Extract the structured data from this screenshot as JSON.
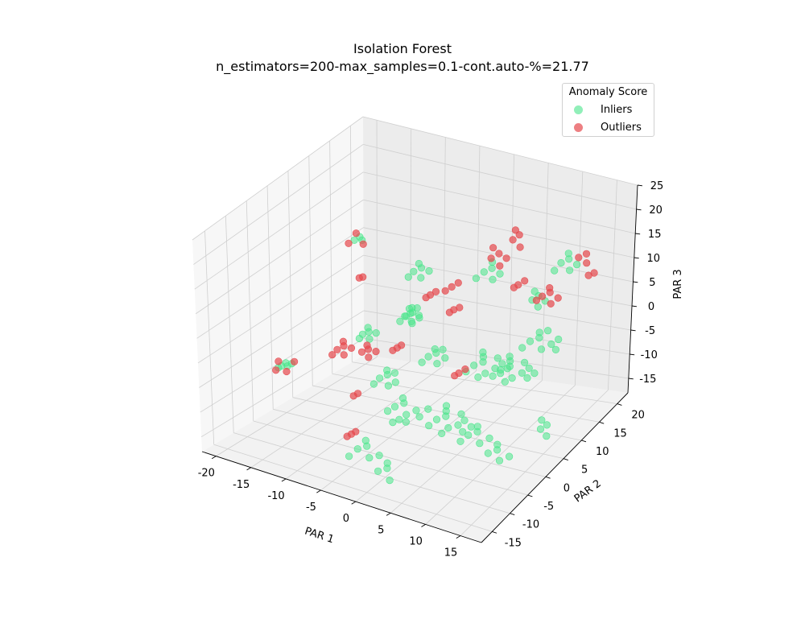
{
  "chart_data": {
    "type": "scatter",
    "projection": "3d",
    "title_line1": "Isolation Forest",
    "title_line2": "n_estimators=200-max_samples=0.1-cont.auto-%=21.77",
    "xlabel": "PAR 1",
    "ylabel": "PAR 2",
    "zlabel": "PAR 3",
    "xticks": [
      -20,
      -15,
      -10,
      -5,
      0,
      5,
      10,
      15
    ],
    "yticks": [
      -15,
      -10,
      -5,
      0,
      5,
      10,
      15,
      20
    ],
    "zticks": [
      -15,
      -10,
      -5,
      0,
      5,
      10,
      15,
      20,
      25
    ],
    "xlim": [
      -22,
      18
    ],
    "ylim": [
      -18,
      23
    ],
    "zlim": [
      -18,
      25
    ],
    "grid": true,
    "legend": {
      "title": "Anomaly Score",
      "placement": "upper right",
      "entries": [
        "Inliers",
        "Outliers"
      ]
    },
    "series": [
      {
        "name": "Inliers",
        "color": "#48e58a",
        "points": [
          [
            -20.0,
            -1.0,
            -8.5
          ],
          [
            -19.6,
            -0.6,
            -8.0
          ],
          [
            -19.2,
            -0.9,
            -8.3
          ],
          [
            -18.8,
            -0.5,
            -7.9
          ],
          [
            -20.3,
            -1.3,
            -8.8
          ],
          [
            -15.0,
            9.0,
            12.0
          ],
          [
            -14.5,
            9.5,
            12.5
          ],
          [
            -14.0,
            9.2,
            12.2
          ],
          [
            -11.0,
            4.0,
            -2.0
          ],
          [
            -10.4,
            4.5,
            -1.6
          ],
          [
            -9.8,
            3.6,
            -2.3
          ],
          [
            -10.8,
            5.0,
            -1.2
          ],
          [
            -9.5,
            4.8,
            -1.7
          ],
          [
            -11.2,
            3.5,
            -2.6
          ],
          [
            -6.0,
            6.0,
            2.0
          ],
          [
            -5.4,
            6.4,
            2.5
          ],
          [
            -4.8,
            5.6,
            1.6
          ],
          [
            -5.9,
            7.0,
            2.9
          ],
          [
            -4.4,
            6.8,
            2.2
          ],
          [
            -6.3,
            5.3,
            1.3
          ],
          [
            -5.0,
            7.4,
            3.1
          ],
          [
            -7.0,
            10.0,
            8.0
          ],
          [
            -6.2,
            10.6,
            8.6
          ],
          [
            -5.6,
            9.4,
            7.6
          ],
          [
            -6.8,
            11.0,
            9.0
          ],
          [
            -5.2,
            10.8,
            8.2
          ],
          [
            -7.3,
            9.2,
            7.3
          ],
          [
            -2.0,
            5.0,
            -4.0
          ],
          [
            -1.2,
            5.6,
            -3.4
          ],
          [
            -0.4,
            4.4,
            -4.5
          ],
          [
            -1.6,
            6.0,
            -3.0
          ],
          [
            0.2,
            5.4,
            -3.8
          ],
          [
            -2.5,
            4.2,
            -4.8
          ],
          [
            -0.8,
            6.6,
            -3.2
          ],
          [
            -8.0,
            3.0,
            -9.0
          ],
          [
            -7.2,
            3.6,
            -8.4
          ],
          [
            -6.4,
            2.4,
            -9.6
          ],
          [
            -7.6,
            4.2,
            -8.0
          ],
          [
            -5.8,
            3.2,
            -9.2
          ],
          [
            -8.4,
            2.2,
            -9.8
          ],
          [
            -6.8,
            4.8,
            -8.6
          ],
          [
            -3.0,
            -2.0,
            -10.0
          ],
          [
            -2.0,
            -1.4,
            -9.3
          ],
          [
            -1.0,
            -2.6,
            -10.5
          ],
          [
            -2.6,
            -0.6,
            -9.0
          ],
          [
            0.0,
            -1.8,
            -9.8
          ],
          [
            -3.6,
            -2.8,
            -10.6
          ],
          [
            -1.6,
            -3.4,
            -11.2
          ],
          [
            0.8,
            -2.4,
            -10.4
          ],
          [
            -2.2,
            -4.0,
            -11.6
          ],
          [
            1.4,
            -1.2,
            -9.4
          ],
          [
            -0.4,
            -3.8,
            -11.0
          ],
          [
            2.0,
            0.0,
            -12.0
          ],
          [
            3.0,
            0.6,
            -11.4
          ],
          [
            4.0,
            -0.6,
            -12.6
          ],
          [
            2.6,
            1.4,
            -11.0
          ],
          [
            5.0,
            0.2,
            -12.2
          ],
          [
            1.4,
            -1.0,
            -12.8
          ],
          [
            3.6,
            -1.6,
            -13.2
          ],
          [
            4.6,
            1.8,
            -11.2
          ],
          [
            6.0,
            -0.4,
            -12.8
          ],
          [
            2.2,
            2.2,
            -10.6
          ],
          [
            5.4,
            1.2,
            -11.8
          ],
          [
            6.6,
            0.8,
            -12.4
          ],
          [
            3.0,
            8.0,
            -6.0
          ],
          [
            4.0,
            8.6,
            -5.4
          ],
          [
            5.0,
            7.4,
            -6.6
          ],
          [
            3.6,
            9.4,
            -5.0
          ],
          [
            6.0,
            8.2,
            -5.8
          ],
          [
            2.4,
            7.0,
            -6.8
          ],
          [
            5.6,
            9.6,
            -4.8
          ],
          [
            7.0,
            7.8,
            -6.2
          ],
          [
            4.4,
            6.6,
            -7.0
          ],
          [
            6.6,
            9.0,
            -5.2
          ],
          [
            7.6,
            8.6,
            -5.6
          ],
          [
            3.2,
            10.0,
            -4.6
          ],
          [
            8.0,
            6.0,
            -4.0
          ],
          [
            9.0,
            6.6,
            -3.4
          ],
          [
            10.0,
            5.4,
            -4.6
          ],
          [
            8.6,
            7.4,
            -3.0
          ],
          [
            11.0,
            6.2,
            -3.8
          ],
          [
            7.4,
            5.0,
            -4.8
          ],
          [
            10.6,
            7.6,
            -2.8
          ],
          [
            12.0,
            5.8,
            -4.2
          ],
          [
            9.4,
            4.6,
            -5.0
          ],
          [
            11.6,
            7.0,
            -3.2
          ],
          [
            12.6,
            6.6,
            -3.6
          ],
          [
            8.2,
            8.0,
            -2.6
          ],
          [
            9.0,
            12.0,
            -2.0
          ],
          [
            10.0,
            12.6,
            -1.4
          ],
          [
            11.0,
            11.4,
            -2.6
          ],
          [
            9.6,
            13.4,
            -1.0
          ],
          [
            12.0,
            12.2,
            -1.8
          ],
          [
            13.0,
            11.6,
            -2.2
          ],
          [
            10.6,
            13.8,
            -0.6
          ],
          [
            8.4,
            11.0,
            -2.8
          ],
          [
            12.6,
            13.0,
            -1.2
          ],
          [
            5.0,
            3.0,
            -16.0
          ],
          [
            6.0,
            3.6,
            -15.4
          ],
          [
            7.0,
            2.4,
            -16.6
          ],
          [
            5.6,
            4.4,
            -15.0
          ],
          [
            8.0,
            3.2,
            -15.8
          ],
          [
            4.4,
            2.0,
            -16.8
          ],
          [
            9.0,
            1.0,
            -17.0
          ],
          [
            10.0,
            1.6,
            -16.4
          ],
          [
            11.0,
            0.4,
            -17.4
          ],
          [
            9.6,
            2.4,
            -16.0
          ],
          [
            12.0,
            1.2,
            -16.8
          ],
          [
            14.0,
            6.0,
            -14.0
          ],
          [
            14.6,
            6.6,
            -13.4
          ],
          [
            15.2,
            5.4,
            -14.6
          ],
          [
            13.6,
            7.0,
            -13.0
          ],
          [
            -4.0,
            -10.0,
            -14.0
          ],
          [
            -3.0,
            -9.4,
            -13.4
          ],
          [
            -2.0,
            -10.6,
            -14.6
          ],
          [
            -3.6,
            -8.6,
            -13.0
          ],
          [
            -1.0,
            -9.8,
            -14.2
          ],
          [
            -4.6,
            -11.2,
            -15.0
          ],
          [
            0.0,
            -12.0,
            -15.6
          ],
          [
            1.0,
            -11.4,
            -15.0
          ],
          [
            2.0,
            -12.6,
            -16.2
          ],
          [
            0.6,
            -10.6,
            -14.6
          ],
          [
            7.0,
            16.0,
            3.0
          ],
          [
            7.6,
            16.6,
            3.6
          ],
          [
            8.2,
            15.4,
            2.4
          ],
          [
            6.8,
            17.0,
            4.0
          ],
          [
            8.8,
            16.2,
            3.2
          ],
          [
            10.0,
            18.0,
            10.0
          ],
          [
            10.8,
            18.6,
            10.6
          ],
          [
            11.6,
            17.4,
            9.4
          ],
          [
            10.4,
            19.2,
            11.2
          ],
          [
            12.2,
            18.2,
            10.2
          ],
          [
            9.6,
            17.0,
            9.0
          ],
          [
            1.0,
            14.0,
            8.0
          ],
          [
            1.8,
            14.6,
            8.6
          ],
          [
            2.6,
            13.4,
            7.4
          ],
          [
            1.4,
            15.4,
            9.2
          ],
          [
            3.2,
            14.2,
            8.2
          ],
          [
            0.4,
            13.0,
            7.2
          ],
          [
            -3.0,
            1.0,
            6.0
          ],
          [
            -2.4,
            1.6,
            6.6
          ],
          [
            -1.8,
            0.4,
            5.4
          ],
          [
            -2.8,
            2.2,
            7.0
          ],
          [
            -1.2,
            1.2,
            6.2
          ]
        ]
      },
      {
        "name": "Outliers",
        "color": "#e5484d",
        "points": [
          [
            -20.5,
            -1.6,
            -9.2
          ],
          [
            -19.0,
            -1.5,
            -9.0
          ],
          [
            -18.6,
            -0.2,
            -7.6
          ],
          [
            -20.8,
            -0.4,
            -8.2
          ],
          [
            -15.6,
            8.6,
            11.4
          ],
          [
            -13.6,
            8.8,
            11.8
          ],
          [
            -15.2,
            9.8,
            12.8
          ],
          [
            -12.0,
            5.0,
            8.0
          ],
          [
            -11.6,
            5.2,
            8.2
          ],
          [
            -13.0,
            1.0,
            -4.0
          ],
          [
            -12.4,
            1.6,
            -3.4
          ],
          [
            -11.8,
            0.6,
            -4.4
          ],
          [
            -12.8,
            2.2,
            -3.0
          ],
          [
            -11.4,
            1.8,
            -3.6
          ],
          [
            -13.4,
            0.4,
            -4.8
          ],
          [
            -10.0,
            2.0,
            -4.0
          ],
          [
            -9.4,
            2.6,
            -3.6
          ],
          [
            -8.8,
            1.6,
            -4.4
          ],
          [
            -9.8,
            3.0,
            -3.2
          ],
          [
            -8.4,
            2.8,
            -3.8
          ],
          [
            -9.0,
            -2.0,
            -10.0
          ],
          [
            -8.6,
            -1.6,
            -9.6
          ],
          [
            -6.0,
            4.0,
            -3.0
          ],
          [
            -5.6,
            4.4,
            -2.6
          ],
          [
            -6.4,
            3.6,
            -3.4
          ],
          [
            -4.0,
            9.0,
            5.0
          ],
          [
            -3.4,
            9.4,
            5.6
          ],
          [
            -4.4,
            8.6,
            4.6
          ],
          [
            -2.0,
            11.0,
            6.0
          ],
          [
            -1.4,
            11.6,
            6.6
          ],
          [
            -2.6,
            10.4,
            5.4
          ],
          [
            0.0,
            8.0,
            4.0
          ],
          [
            0.6,
            8.4,
            4.4
          ],
          [
            -0.4,
            7.6,
            3.6
          ],
          [
            2.0,
            14.0,
            11.0
          ],
          [
            2.8,
            14.6,
            11.8
          ],
          [
            3.6,
            13.4,
            10.4
          ],
          [
            1.6,
            15.2,
            12.2
          ],
          [
            4.0,
            14.4,
            11.4
          ],
          [
            4.0,
            16.0,
            14.0
          ],
          [
            4.6,
            16.6,
            14.8
          ],
          [
            5.4,
            15.4,
            13.4
          ],
          [
            3.8,
            17.0,
            15.2
          ],
          [
            6.0,
            14.0,
            7.0
          ],
          [
            6.6,
            14.6,
            7.6
          ],
          [
            5.6,
            13.6,
            6.6
          ],
          [
            9.0,
            15.0,
            5.0
          ],
          [
            9.8,
            15.6,
            5.6
          ],
          [
            10.6,
            14.4,
            4.4
          ],
          [
            9.4,
            16.2,
            6.0
          ],
          [
            11.2,
            15.2,
            5.2
          ],
          [
            8.6,
            14.2,
            4.6
          ],
          [
            12.0,
            19.0,
            11.0
          ],
          [
            12.8,
            19.6,
            11.6
          ],
          [
            13.4,
            18.6,
            10.6
          ],
          [
            13.0,
            20.0,
            7.0
          ],
          [
            13.6,
            20.4,
            7.4
          ],
          [
            3.0,
            4.0,
            -5.0
          ],
          [
            3.6,
            4.6,
            -4.4
          ],
          [
            2.6,
            3.6,
            -5.4
          ],
          [
            -6.0,
            -8.0,
            -13.0
          ],
          [
            -5.6,
            -7.6,
            -12.6
          ],
          [
            -6.4,
            -8.4,
            -13.4
          ]
        ]
      }
    ]
  }
}
